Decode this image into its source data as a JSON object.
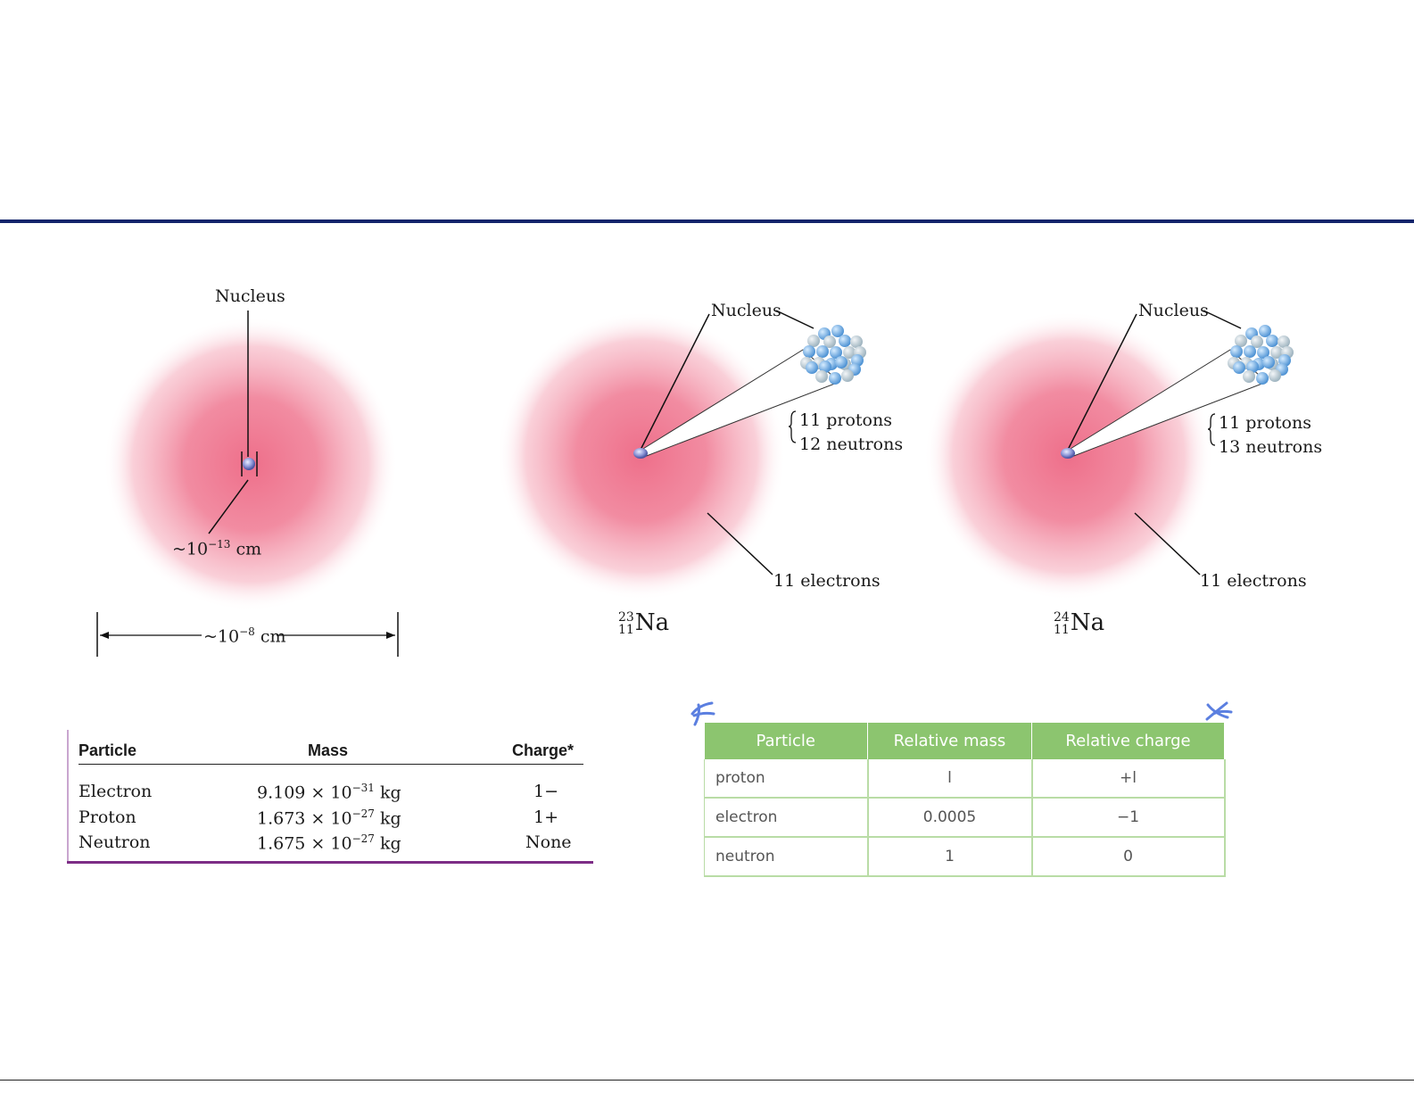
{
  "diagram1": {
    "nucleus_label": "Nucleus",
    "nucleus_size_label": "~10",
    "nucleus_size_exp": "−13",
    "nucleus_size_unit": " cm",
    "atom_size_label": "~10",
    "atom_size_exp": "−8",
    "atom_size_unit": " cm"
  },
  "diagram2": {
    "nucleus_label": "Nucleus",
    "protons": "11 protons",
    "neutrons": "12 neutrons",
    "electrons": "11 electrons",
    "isotope_mass": "23",
    "isotope_number": "11",
    "isotope_symbol": "Na"
  },
  "diagram3": {
    "nucleus_label": "Nucleus",
    "protons": "11 protons",
    "neutrons": "13 neutrons",
    "electrons": "11 electrons",
    "isotope_mass": "24",
    "isotope_number": "11",
    "isotope_symbol": "Na"
  },
  "table1": {
    "headers": [
      "Particle",
      "Mass",
      "Charge*"
    ],
    "rows": [
      {
        "particle": "Electron",
        "mass": "9.109 × 10",
        "exp": "−31",
        "unit": " kg",
        "charge": "1−"
      },
      {
        "particle": "Proton",
        "mass": "1.673 × 10",
        "exp": "−27",
        "unit": " kg",
        "charge": "1+"
      },
      {
        "particle": "Neutron",
        "mass": "1.675 × 10",
        "exp": "−27",
        "unit": " kg",
        "charge": "None"
      }
    ]
  },
  "table2": {
    "headers": [
      "Particle",
      "Relative mass",
      "Relative charge"
    ],
    "rows": [
      {
        "particle": "proton",
        "mass": "l",
        "charge": "+l"
      },
      {
        "particle": "electron",
        "mass": "0.0005",
        "charge": "−1"
      },
      {
        "particle": "neutron",
        "mass": "1",
        "charge": "0"
      }
    ],
    "header_color": "#8cc56f",
    "mark_color": "#5b7fe0"
  },
  "colors": {
    "rule": "#13246b",
    "cloud": "#ee6f8a",
    "table1_accent": "#7d2d86"
  }
}
